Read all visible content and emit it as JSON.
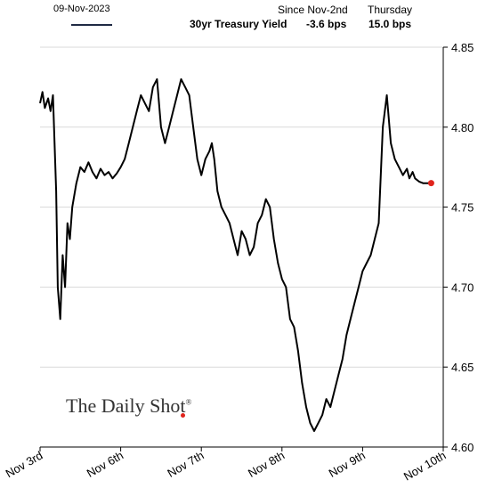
{
  "header": {
    "date": "09-Nov-2023",
    "series_label": "30yr Treasury Yield",
    "since_label": "Since Nov-2nd",
    "since_value": "-3.6 bps",
    "day_label": "Thursday",
    "day_value": "15.0 bps"
  },
  "watermark": {
    "text": "The Daily Shot",
    "mark": "®"
  },
  "colors": {
    "line": "#000000",
    "legend_line": "#1f2a44",
    "end_marker": "#e0241c",
    "grid": "#d9d9d9"
  },
  "chart_data": {
    "type": "line",
    "series_name": "30yr Treasury Yield",
    "categories": [
      "Nov 3rd",
      "Nov 6th",
      "Nov 7th",
      "Nov 8th",
      "Nov 9th",
      "Nov 10th"
    ],
    "y_ticks": [
      "4.60",
      "4.65",
      "4.70",
      "4.75",
      "4.80",
      "4.85"
    ],
    "ylim": [
      4.6,
      4.85
    ],
    "xlim": [
      0,
      5
    ],
    "grid": "horizontal",
    "end_marker": true,
    "x": [
      0.0,
      0.03,
      0.06,
      0.1,
      0.13,
      0.16,
      0.18,
      0.2,
      0.22,
      0.25,
      0.28,
      0.31,
      0.34,
      0.37,
      0.4,
      0.45,
      0.5,
      0.55,
      0.6,
      0.65,
      0.7,
      0.75,
      0.8,
      0.85,
      0.9,
      0.95,
      1.0,
      1.05,
      1.1,
      1.15,
      1.2,
      1.25,
      1.3,
      1.35,
      1.4,
      1.45,
      1.5,
      1.55,
      1.6,
      1.65,
      1.7,
      1.75,
      1.8,
      1.85,
      1.9,
      1.95,
      2.0,
      2.05,
      2.1,
      2.13,
      2.16,
      2.2,
      2.25,
      2.3,
      2.35,
      2.4,
      2.45,
      2.5,
      2.55,
      2.6,
      2.65,
      2.7,
      2.75,
      2.8,
      2.85,
      2.9,
      2.95,
      3.0,
      3.05,
      3.1,
      3.15,
      3.2,
      3.25,
      3.3,
      3.35,
      3.4,
      3.45,
      3.5,
      3.55,
      3.6,
      3.65,
      3.7,
      3.75,
      3.8,
      3.85,
      3.9,
      3.95,
      4.0,
      4.05,
      4.1,
      4.15,
      4.2,
      4.25,
      4.3,
      4.35,
      4.4,
      4.45,
      4.5,
      4.55,
      4.58,
      4.6,
      4.62,
      4.65,
      4.7,
      4.75,
      4.8,
      4.85
    ],
    "values": [
      4.815,
      4.822,
      4.812,
      4.818,
      4.81,
      4.82,
      4.79,
      4.76,
      4.7,
      4.68,
      4.72,
      4.7,
      4.74,
      4.73,
      4.75,
      4.765,
      4.775,
      4.772,
      4.778,
      4.772,
      4.768,
      4.774,
      4.77,
      4.772,
      4.768,
      4.771,
      4.775,
      4.78,
      4.79,
      4.8,
      4.81,
      4.82,
      4.815,
      4.81,
      4.825,
      4.83,
      4.8,
      4.79,
      4.8,
      4.81,
      4.82,
      4.83,
      4.825,
      4.82,
      4.8,
      4.78,
      4.77,
      4.78,
      4.785,
      4.79,
      4.78,
      4.76,
      4.75,
      4.745,
      4.74,
      4.73,
      4.72,
      4.735,
      4.73,
      4.72,
      4.725,
      4.74,
      4.745,
      4.755,
      4.75,
      4.73,
      4.715,
      4.705,
      4.7,
      4.68,
      4.675,
      4.66,
      4.64,
      4.625,
      4.615,
      4.61,
      4.615,
      4.62,
      4.63,
      4.625,
      4.635,
      4.645,
      4.655,
      4.67,
      4.68,
      4.69,
      4.7,
      4.71,
      4.715,
      4.72,
      4.73,
      4.74,
      4.8,
      4.82,
      4.79,
      4.78,
      4.775,
      4.77,
      4.774,
      4.768,
      4.77,
      4.772,
      4.768,
      4.766,
      4.765,
      4.765,
      4.765
    ]
  }
}
